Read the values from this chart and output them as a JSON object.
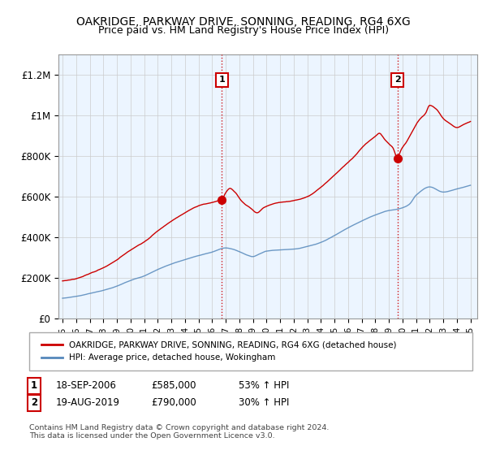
{
  "title": "OAKRIDGE, PARKWAY DRIVE, SONNING, READING, RG4 6XG",
  "subtitle": "Price paid vs. HM Land Registry's House Price Index (HPI)",
  "ylim": [
    0,
    1300000
  ],
  "xlim_start": 1994.7,
  "xlim_end": 2025.5,
  "yticks": [
    0,
    200000,
    400000,
    600000,
    800000,
    1000000,
    1200000
  ],
  "ytick_labels": [
    "£0",
    "£200K",
    "£400K",
    "£600K",
    "£800K",
    "£1M",
    "£1.2M"
  ],
  "xticks": [
    1995,
    1996,
    1997,
    1998,
    1999,
    2000,
    2001,
    2002,
    2003,
    2004,
    2005,
    2006,
    2007,
    2008,
    2009,
    2010,
    2011,
    2012,
    2013,
    2014,
    2015,
    2016,
    2017,
    2018,
    2019,
    2020,
    2021,
    2022,
    2023,
    2024,
    2025
  ],
  "red_color": "#cc0000",
  "blue_color": "#5588bb",
  "shade_color": "#ddeeff",
  "sale1_x": 2006.72,
  "sale1_y": 585000,
  "sale2_x": 2019.63,
  "sale2_y": 790000,
  "legend_label_red": "OAKRIDGE, PARKWAY DRIVE, SONNING, READING, RG4 6XG (detached house)",
  "legend_label_blue": "HPI: Average price, detached house, Wokingham",
  "footer_note": "Contains HM Land Registry data © Crown copyright and database right 2024.\nThis data is licensed under the Open Government Licence v3.0.",
  "background_color": "#ffffff"
}
